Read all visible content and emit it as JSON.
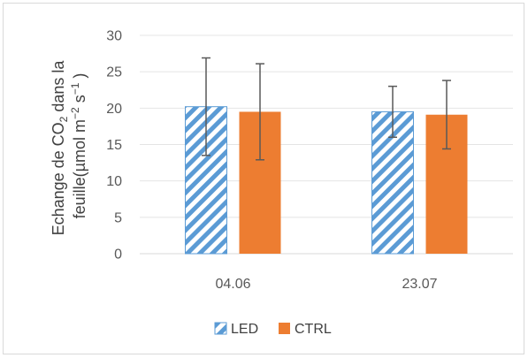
{
  "chart_data": {
    "type": "bar",
    "categories": [
      "04.06",
      "23.07"
    ],
    "series": [
      {
        "name": "LED",
        "values": [
          20.2,
          19.5
        ],
        "error": [
          6.7,
          3.5
        ],
        "fill": "hatch",
        "color": "#5b9bd5"
      },
      {
        "name": "CTRL",
        "values": [
          19.5,
          19.1
        ],
        "error": [
          6.6,
          4.7
        ],
        "fill": "solid",
        "color": "#ed7d31"
      }
    ],
    "yticks": [
      "0",
      "5",
      "10",
      "15",
      "20",
      "25",
      "30"
    ],
    "ylim": [
      0,
      30
    ],
    "ylabel": {
      "line1_a": "Echange de CO",
      "line1_sub": "2",
      "line1_b": " dans la",
      "line2_a": "feuille(µmol m",
      "line2_sup1": "−2",
      "line2_b": " s",
      "line2_sup2": "−1",
      "line2_c": " )"
    },
    "grid": true,
    "legend_position": "bottom"
  }
}
